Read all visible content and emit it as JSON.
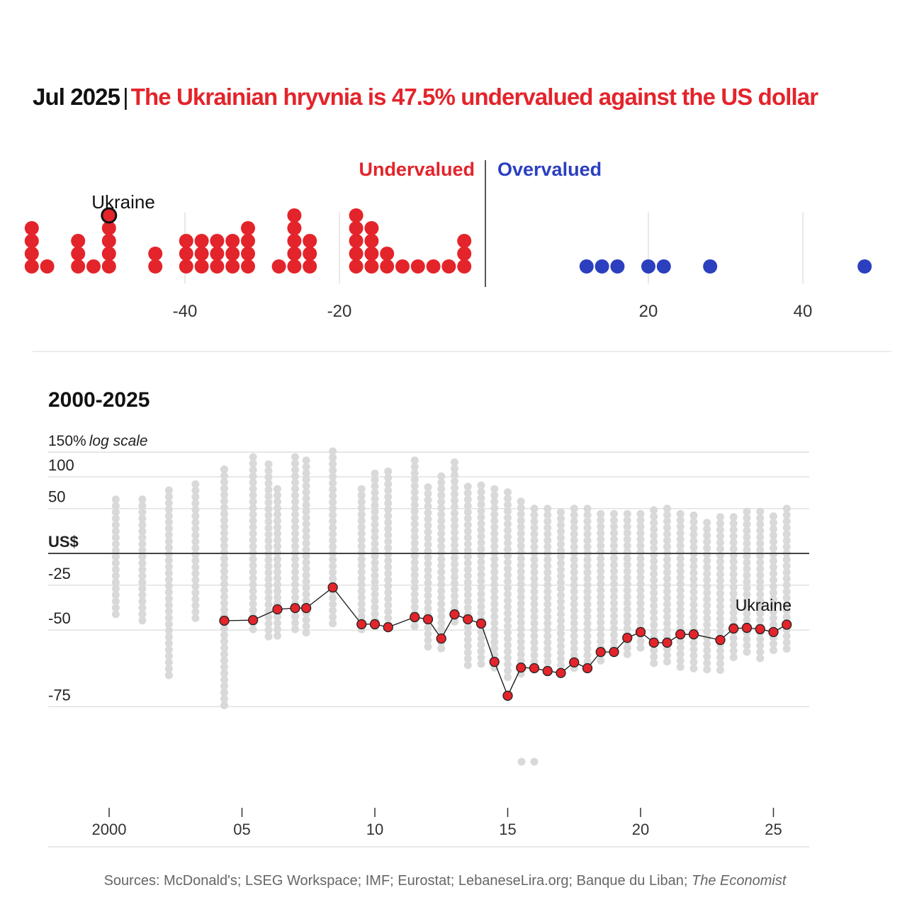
{
  "header": {
    "date": "Jul 2025",
    "separator": "|",
    "headline": "The Ukrainian hryvnia is 47.5% undervalued against the US dollar"
  },
  "colors": {
    "under": "#e3242b",
    "over": "#2b3fbf",
    "other": "#d9d9d9",
    "text": "#111111",
    "grid": "#dcdcdc"
  },
  "chart_data": [
    {
      "type": "scatter",
      "subtype": "dot-strip",
      "labels": {
        "under": "Undervalued",
        "over": "Overvalued",
        "highlight": "Ukraine"
      },
      "xlim": [
        -60,
        50
      ],
      "xticks": [
        -40,
        -20,
        20,
        40
      ],
      "xtick_labels": [
        "-40",
        "-20",
        "20",
        "40"
      ],
      "highlight_value": -47.5,
      "values": [
        -58,
        -58,
        -58,
        -58,
        -56,
        -52,
        -52,
        -52,
        -50,
        -48,
        -48,
        -48,
        -48,
        -42,
        -42,
        -38,
        -38,
        -38,
        -36,
        -36,
        -36,
        -34,
        -34,
        -34,
        -32,
        -32,
        -32,
        -30,
        -30,
        -30,
        -30,
        -26,
        -24,
        -24,
        -24,
        -24,
        -24,
        -22,
        -22,
        -22,
        -16,
        -16,
        -16,
        -16,
        -16,
        -14,
        -14,
        -14,
        -14,
        -12,
        -12,
        -10,
        -8,
        -6,
        -4,
        -2,
        -2,
        -2,
        12,
        14,
        16,
        20,
        22,
        28,
        48
      ]
    },
    {
      "type": "line",
      "title": "2000-2025",
      "scale": "log",
      "ylabel_top": "150%",
      "ylabel_note": "log scale",
      "yticks": [
        150,
        100,
        50,
        0,
        -25,
        -50,
        -75
      ],
      "ytick_labels": [
        "",
        "100",
        "50",
        "US$",
        "-25",
        "-50",
        "-75"
      ],
      "xticks": [
        2000,
        2005,
        2010,
        2015,
        2020,
        2025
      ],
      "xtick_labels": [
        "2000",
        "05",
        "10",
        "15",
        "20",
        "25"
      ],
      "grid": true,
      "series": [
        {
          "name": "Ukraine",
          "dates": [
            "2004-05",
            "2005-06",
            "2006-05",
            "2007-01",
            "2007-06",
            "2008-06",
            "2009-07",
            "2010-01",
            "2010-07",
            "2011-07",
            "2012-01",
            "2012-07",
            "2013-01",
            "2013-07",
            "2014-01",
            "2014-07",
            "2015-01",
            "2015-07",
            "2016-01",
            "2016-07",
            "2017-01",
            "2017-07",
            "2018-01",
            "2018-07",
            "2019-01",
            "2019-07",
            "2020-01",
            "2020-07",
            "2021-01",
            "2021-07",
            "2022-01",
            "2023-01",
            "2023-07",
            "2024-01",
            "2024-07",
            "2025-01",
            "2025-07"
          ],
          "values": [
            -45.6,
            -45.3,
            -39.7,
            -39.0,
            -39.0,
            -26.5,
            -47.3,
            -47.3,
            -48.7,
            -43.8,
            -44.9,
            -53.7,
            -42.4,
            -44.9,
            -47.0,
            -62.5,
            -72.4,
            -64.4,
            -64.6,
            -65.5,
            -66.1,
            -62.7,
            -64.6,
            -59.0,
            -59.0,
            -53.4,
            -50.9,
            -55.4,
            -55.4,
            -51.9,
            -51.9,
            -54.3,
            -49.3,
            -49.0,
            -49.6,
            -50.9,
            -47.5
          ]
        }
      ],
      "other_countries_ranges": {
        "dates": [
          "2000-04",
          "2001-04",
          "2002-04",
          "2003-04",
          "2004-05",
          "2005-06",
          "2006-01",
          "2006-05",
          "2007-01",
          "2007-06",
          "2008-06",
          "2009-07",
          "2010-01",
          "2010-07",
          "2011-07",
          "2012-01",
          "2012-07",
          "2013-01",
          "2013-07",
          "2014-01",
          "2014-07",
          "2015-01",
          "2015-07",
          "2016-01",
          "2016-07",
          "2017-01",
          "2017-07",
          "2018-01",
          "2018-07",
          "2019-01",
          "2019-07",
          "2020-01",
          "2020-07",
          "2021-01",
          "2021-07",
          "2022-01",
          "2022-07",
          "2023-01",
          "2023-07",
          "2024-01",
          "2024-07",
          "2025-01",
          "2025-07"
        ],
        "max": [
          63,
          63,
          77,
          87,
          114,
          139,
          124,
          79,
          139,
          132,
          152,
          79,
          106,
          110,
          132,
          82,
          101,
          128,
          83,
          85,
          79,
          74,
          60,
          50,
          50,
          45,
          50,
          50,
          43,
          43,
          43,
          43,
          48,
          50,
          43,
          41,
          32,
          39,
          39,
          46,
          46,
          40,
          50
        ],
        "min": [
          -45,
          -47,
          -67,
          -47,
          -75,
          -52,
          -53,
          -53,
          -52,
          -53,
          -49,
          -50,
          -50,
          -50,
          -49,
          -58,
          -60,
          -47,
          -65,
          -64,
          -65,
          -68,
          -67,
          -65,
          -65,
          -65,
          -65,
          -65,
          -63,
          -59,
          -62,
          -59,
          -64,
          -64,
          -66,
          -66,
          -66,
          -66,
          -63,
          -60,
          -62,
          -60,
          -59
        ]
      }
    }
  ],
  "source": {
    "text": "Sources: McDonald's; LSEG Workspace; IMF; Eurostat; LebaneseLira.org; Banque du Liban; ",
    "italic": "The Economist"
  }
}
